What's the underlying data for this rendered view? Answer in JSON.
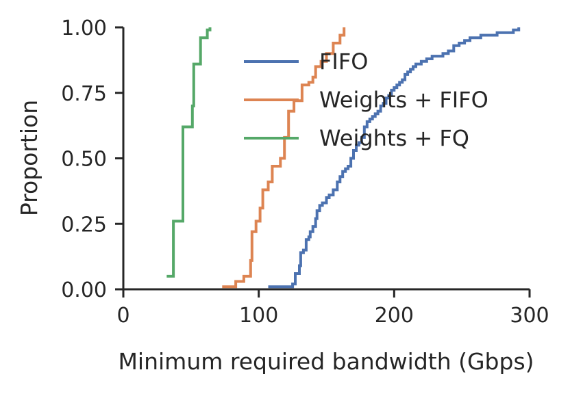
{
  "chart_data": {
    "type": "line",
    "xlabel": "Minimum required bandwidth (Gbps)",
    "ylabel": "Proportion",
    "xlim": [
      0,
      300
    ],
    "ylim": [
      0,
      1
    ],
    "xticks": [
      0,
      100,
      200,
      300
    ],
    "ytick_labels": [
      "0.00",
      "0.25",
      "0.50",
      "0.75",
      "1.00"
    ],
    "yticks": [
      0,
      0.25,
      0.5,
      0.75,
      1.0
    ],
    "grid": false,
    "legend_position": "top-right",
    "series": [
      {
        "name": "FIFO",
        "color": "#4c72b0",
        "x": [
          107,
          125,
          127,
          130,
          131,
          133,
          135,
          137,
          138,
          140,
          142,
          143,
          145,
          147,
          150,
          152,
          155,
          158,
          160,
          162,
          164,
          166,
          168,
          170,
          172,
          174,
          176,
          178,
          180,
          182,
          184,
          186,
          188,
          190,
          192,
          194,
          196,
          198,
          200,
          202,
          204,
          206,
          208,
          210,
          212,
          214,
          216,
          218,
          220,
          224,
          228,
          232,
          236,
          240,
          244,
          248,
          252,
          256,
          260,
          264,
          268,
          272,
          276,
          280,
          284,
          288,
          292
        ],
        "y": [
          0.01,
          0.02,
          0.06,
          0.09,
          0.14,
          0.15,
          0.19,
          0.2,
          0.22,
          0.24,
          0.27,
          0.3,
          0.32,
          0.33,
          0.35,
          0.36,
          0.38,
          0.41,
          0.43,
          0.45,
          0.46,
          0.47,
          0.5,
          0.53,
          0.55,
          0.56,
          0.58,
          0.62,
          0.64,
          0.65,
          0.66,
          0.67,
          0.68,
          0.7,
          0.71,
          0.73,
          0.74,
          0.76,
          0.77,
          0.78,
          0.79,
          0.8,
          0.82,
          0.83,
          0.84,
          0.85,
          0.86,
          0.86,
          0.87,
          0.88,
          0.89,
          0.89,
          0.9,
          0.91,
          0.93,
          0.94,
          0.95,
          0.96,
          0.96,
          0.97,
          0.97,
          0.97,
          0.98,
          0.98,
          0.98,
          0.99,
          1.0
        ]
      },
      {
        "name": "Weights + FIFO",
        "color": "#dd8452",
        "x": [
          73,
          83,
          89,
          94,
          95,
          98,
          101,
          103,
          107,
          110,
          116,
          119,
          122,
          126,
          132,
          137,
          140,
          142,
          146,
          150,
          155,
          160,
          163
        ],
        "y": [
          0.01,
          0.03,
          0.05,
          0.11,
          0.22,
          0.26,
          0.31,
          0.38,
          0.41,
          0.47,
          0.5,
          0.58,
          0.68,
          0.72,
          0.78,
          0.79,
          0.81,
          0.85,
          0.87,
          0.9,
          0.94,
          0.97,
          1.0
        ]
      },
      {
        "name": "Weights + FQ",
        "color": "#55a868",
        "x": [
          32,
          37,
          44,
          51,
          52,
          55,
          57,
          62,
          64
        ],
        "y": [
          0.05,
          0.26,
          0.62,
          0.7,
          0.86,
          0.86,
          0.96,
          0.99,
          1.0
        ]
      }
    ]
  }
}
